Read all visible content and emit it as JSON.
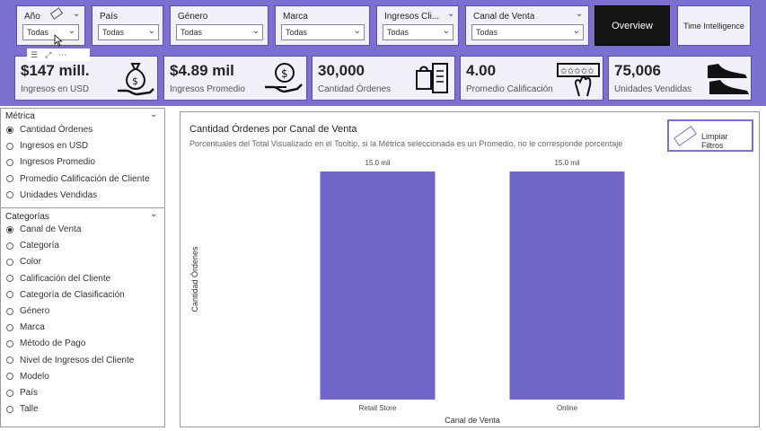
{
  "slicers": [
    {
      "title": "Año",
      "value": "Todas"
    },
    {
      "title": "País",
      "value": "Todas"
    },
    {
      "title": "Género",
      "value": "Todas"
    },
    {
      "title": "Marca",
      "value": "Todas"
    },
    {
      "title": "Ingresos Cli...",
      "value": "Todas"
    },
    {
      "title": "Canal de Venta",
      "value": "Todas"
    }
  ],
  "nav": {
    "overview": "Overview",
    "time_intelligence": "Time Intelligence"
  },
  "kpis": [
    {
      "value": "$147 mill.",
      "label": "Ingresos en USD",
      "icon": "money-bag-hand-icon"
    },
    {
      "value": "$4.89 mil",
      "label": "Ingresos Promedio",
      "icon": "coin-hand-icon"
    },
    {
      "value": "30,000",
      "label": "Cantidad Órdenes",
      "icon": "receipt-bag-icon"
    },
    {
      "value": "4.00",
      "label": "Promedio Calificación",
      "icon": "rating-stars-icon"
    },
    {
      "value": "75,006",
      "label": "Unidades Vendidas",
      "icon": "sneakers-icon"
    }
  ],
  "metric_panel": {
    "title": "Métrica",
    "items": [
      "Cantidad Órdenes",
      "Ingresos en USD",
      "Ingresos Promedio",
      "Promedio Calificación de Cliente",
      "Unidades Vendidas"
    ],
    "selected": 0
  },
  "category_panel": {
    "title": "Categorías",
    "items": [
      "Canal de Venta",
      "Categoría",
      "Color",
      "Calificación del Cliente",
      "Categoría de Clasificación",
      "Género",
      "Marca",
      "Método de Pago",
      "Nivel de Ingresos del Cliente",
      "Modelo",
      "País",
      "Talle"
    ],
    "selected": 0
  },
  "clear_button": "Limpiar Filtros",
  "colors": {
    "accent": "#7b6fd0",
    "bar": "#7066c8",
    "dark": "#141414"
  },
  "chart_data": {
    "type": "bar",
    "title": "Cantidad Órdenes por Canal de Venta",
    "subtitle": "Porcentuales del Total Visualizado en el Tooltip, si la Métrica seleccionada es un Promedio, no le corresponde porcentaje",
    "categories": [
      "Retail Store",
      "Online"
    ],
    "values": [
      15000,
      15000
    ],
    "data_labels": [
      "15.0 mil",
      "15.0 mil"
    ],
    "xlabel": "Canal de Venta",
    "ylabel": "Cantidad Órdenes",
    "ylim": [
      0,
      15000
    ],
    "grid": false,
    "legend": "none"
  }
}
